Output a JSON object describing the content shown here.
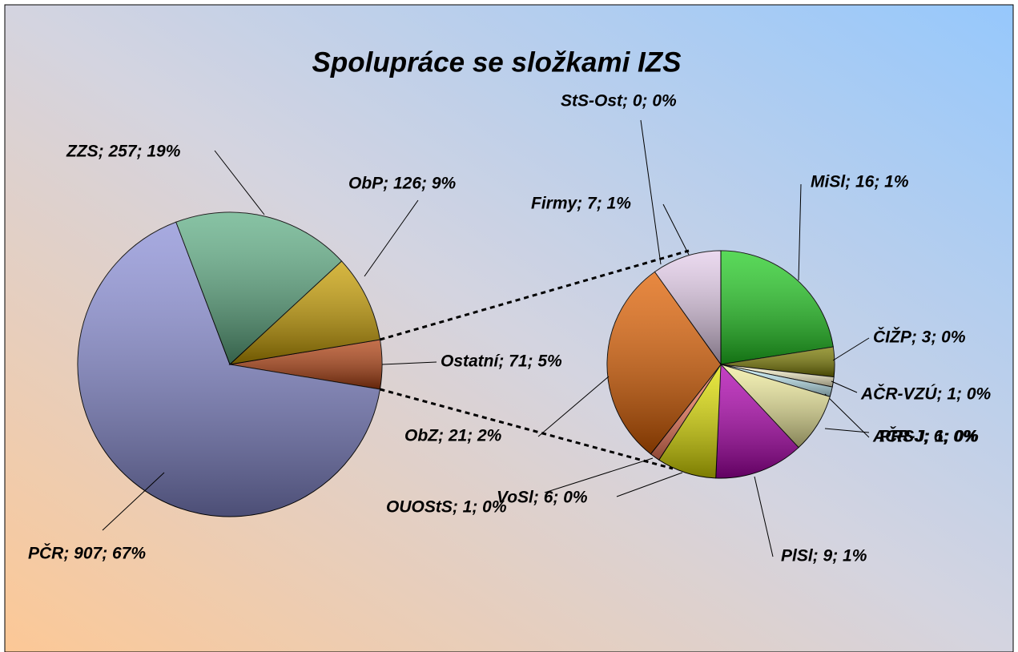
{
  "chart_data": {
    "type": "pie-of-pie",
    "title": "Spolupráce se složkami IZS",
    "pies": [
      {
        "values": [
          71,
          907,
          257,
          126
        ],
        "value_labels": [
          "Ostatní; 71; 5%",
          "PČR; 907; 67%",
          "ZZS; 257; 19%",
          "ObP; 126; 9%"
        ],
        "colors": [
          "#b04010",
          "#8a8ed6",
          "#5fae85",
          "#c89e00"
        ]
      },
      {
        "values": [
          16,
          3,
          1,
          1,
          6,
          9,
          6,
          1,
          21,
          7,
          0
        ],
        "value_labels": [
          "MiSl; 16; 1%",
          "ČIŽP; 3; 0%",
          "AČR-VZÚ; 1; 0%",
          "AČR-J; 1; 0%",
          "PRSJ; 6; 0%",
          "PlSl; 9; 1%",
          "VoSl; 6; 0%",
          "OUOStS; 1; 0%",
          "ObZ; 21; 2%",
          "Firmy; 7; 1%",
          "StS-Ost; 0; 0%"
        ],
        "colors": [
          "#22cc22",
          "#7a7a00",
          "#fff8d0",
          "#c8f4ff",
          "#f0ec9c",
          "#b000b0",
          "#e0e000",
          "#ff8060",
          "#e06000",
          "#e4cdea",
          "#ffffff"
        ]
      }
    ]
  }
}
